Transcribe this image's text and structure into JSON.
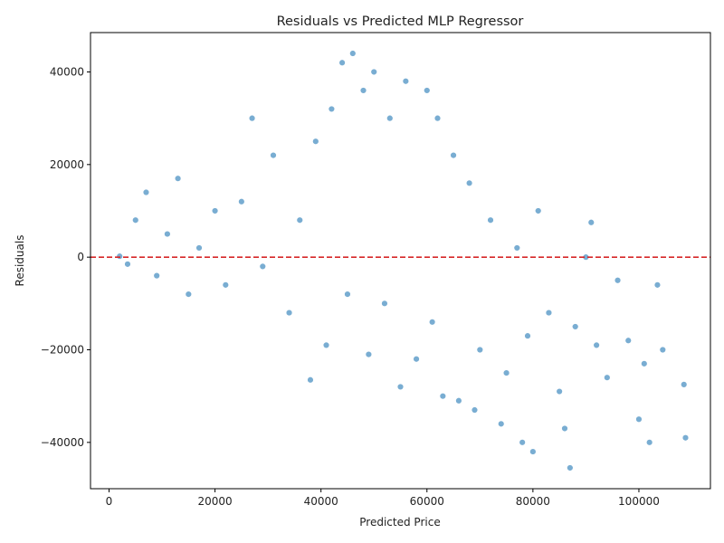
{
  "chart_data": {
    "type": "scatter",
    "title": "Residuals vs Predicted MLP Regressor",
    "xlabel": "Predicted Price",
    "ylabel": "Residuals",
    "xlim": [
      -3500,
      113500
    ],
    "ylim": [
      -50000,
      48500
    ],
    "x_ticks": [
      0,
      20000,
      40000,
      60000,
      80000,
      100000
    ],
    "x_tick_labels": [
      "0",
      "20000",
      "40000",
      "60000",
      "80000",
      "100000"
    ],
    "y_ticks": [
      -40000,
      -20000,
      0,
      20000,
      40000
    ],
    "y_tick_labels": [
      "−40000",
      "−20000",
      "0",
      "20000",
      "40000"
    ],
    "reference_line": {
      "y": 0,
      "style": "dashed",
      "color": "#d62728"
    },
    "marker_color": "#1f77b4",
    "marker_edge_color": "#ffffff",
    "marker_alpha": 0.6,
    "grid": false,
    "legend": "none",
    "points": [
      [
        2000,
        200
      ],
      [
        3500,
        -1500
      ],
      [
        5000,
        8000
      ],
      [
        7000,
        14000
      ],
      [
        9000,
        -4000
      ],
      [
        11000,
        5000
      ],
      [
        13000,
        17000
      ],
      [
        15000,
        -8000
      ],
      [
        17000,
        2000
      ],
      [
        20000,
        10000
      ],
      [
        22000,
        -6000
      ],
      [
        25000,
        12000
      ],
      [
        27000,
        30000
      ],
      [
        29000,
        -2000
      ],
      [
        31000,
        22000
      ],
      [
        34000,
        -12000
      ],
      [
        36000,
        8000
      ],
      [
        38000,
        -26500
      ],
      [
        39000,
        25000
      ],
      [
        41000,
        -19000
      ],
      [
        42000,
        32000
      ],
      [
        44000,
        42000
      ],
      [
        45000,
        -8000
      ],
      [
        46000,
        44000
      ],
      [
        48000,
        36000
      ],
      [
        49000,
        -21000
      ],
      [
        50000,
        40000
      ],
      [
        52000,
        -10000
      ],
      [
        53000,
        30000
      ],
      [
        55000,
        -28000
      ],
      [
        56000,
        38000
      ],
      [
        58000,
        -22000
      ],
      [
        60000,
        36000
      ],
      [
        61000,
        -14000
      ],
      [
        62000,
        30000
      ],
      [
        63000,
        -30000
      ],
      [
        65000,
        22000
      ],
      [
        66000,
        -31000
      ],
      [
        68000,
        16000
      ],
      [
        69000,
        -33000
      ],
      [
        70000,
        -20000
      ],
      [
        72000,
        8000
      ],
      [
        74000,
        -36000
      ],
      [
        75000,
        -25000
      ],
      [
        77000,
        2000
      ],
      [
        78000,
        -40000
      ],
      [
        79000,
        -17000
      ],
      [
        80000,
        -42000
      ],
      [
        81000,
        10000
      ],
      [
        83000,
        -12000
      ],
      [
        85000,
        -29000
      ],
      [
        86000,
        -37000
      ],
      [
        87000,
        -45500
      ],
      [
        88000,
        -15000
      ],
      [
        90000,
        0
      ],
      [
        91000,
        7500
      ],
      [
        92000,
        -19000
      ],
      [
        94000,
        -26000
      ],
      [
        96000,
        -5000
      ],
      [
        98000,
        -18000
      ],
      [
        100000,
        -35000
      ],
      [
        101000,
        -23000
      ],
      [
        102000,
        -40000
      ],
      [
        103500,
        -6000
      ],
      [
        104500,
        -20000
      ],
      [
        108500,
        -27500
      ],
      [
        108800,
        -39000
      ]
    ]
  }
}
